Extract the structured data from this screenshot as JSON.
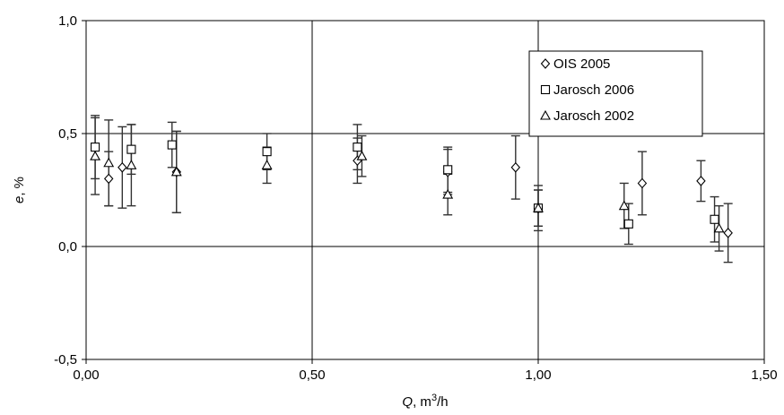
{
  "chart_data": {
    "type": "scatter",
    "title": "",
    "xlabel": {
      "var": "Q",
      "unit": ", m",
      "sup": "3",
      "tail": "/h"
    },
    "ylabel": {
      "var": "e",
      "unit": ", %"
    },
    "xlim": [
      0,
      1.5
    ],
    "ylim": [
      -0.5,
      1.0
    ],
    "xticks": [
      0,
      0.5,
      1.0,
      1.5
    ],
    "yticks": [
      -0.5,
      0,
      0.5,
      1.0
    ],
    "xtick_labels": [
      "0,00",
      "0,50",
      "1,00",
      "1,50"
    ],
    "ytick_labels": [
      "-0,5",
      "0,0",
      "0,5",
      "1,0"
    ],
    "grid": true,
    "legend_position": "top-right",
    "series": [
      {
        "name": "OIS 2005",
        "marker": "diamond",
        "points": [
          {
            "x": 0.05,
            "y": 0.3,
            "err": 0.12
          },
          {
            "x": 0.08,
            "y": 0.35,
            "err": 0.18
          },
          {
            "x": 0.2,
            "y": 0.33,
            "err": 0.18
          },
          {
            "x": 0.6,
            "y": 0.38,
            "err": 0.1
          },
          {
            "x": 0.8,
            "y": 0.33,
            "err": 0.1
          },
          {
            "x": 0.95,
            "y": 0.35,
            "err": 0.14
          },
          {
            "x": 1.0,
            "y": 0.17,
            "err": 0.1
          },
          {
            "x": 1.23,
            "y": 0.28,
            "err": 0.14
          },
          {
            "x": 1.36,
            "y": 0.29,
            "err": 0.09
          },
          {
            "x": 1.42,
            "y": 0.06,
            "err": 0.13
          }
        ]
      },
      {
        "name": "Jarosch 2006",
        "marker": "square",
        "points": [
          {
            "x": 0.02,
            "y": 0.44,
            "err": 0.14
          },
          {
            "x": 0.1,
            "y": 0.43,
            "err": 0.11
          },
          {
            "x": 0.19,
            "y": 0.45,
            "err": 0.1
          },
          {
            "x": 0.4,
            "y": 0.42,
            "err": 0.08
          },
          {
            "x": 0.6,
            "y": 0.44,
            "err": 0.1
          },
          {
            "x": 0.8,
            "y": 0.34,
            "err": 0.1
          },
          {
            "x": 1.0,
            "y": 0.17,
            "err": 0.08
          },
          {
            "x": 1.2,
            "y": 0.1,
            "err": 0.09
          },
          {
            "x": 1.39,
            "y": 0.12,
            "err": 0.1
          }
        ]
      },
      {
        "name": "Jarosch 2002",
        "marker": "triangle",
        "points": [
          {
            "x": 0.02,
            "y": 0.4,
            "err": 0.17
          },
          {
            "x": 0.05,
            "y": 0.37,
            "err": 0.19
          },
          {
            "x": 0.1,
            "y": 0.36,
            "err": 0.18
          },
          {
            "x": 0.2,
            "y": 0.33,
            "err": 0.18
          },
          {
            "x": 0.4,
            "y": 0.36,
            "err": 0.08
          },
          {
            "x": 0.61,
            "y": 0.4,
            "err": 0.09
          },
          {
            "x": 0.8,
            "y": 0.23,
            "err": 0.09
          },
          {
            "x": 1.0,
            "y": 0.17,
            "err": 0.08
          },
          {
            "x": 1.19,
            "y": 0.18,
            "err": 0.1
          },
          {
            "x": 1.4,
            "y": 0.08,
            "err": 0.1
          }
        ]
      }
    ]
  }
}
